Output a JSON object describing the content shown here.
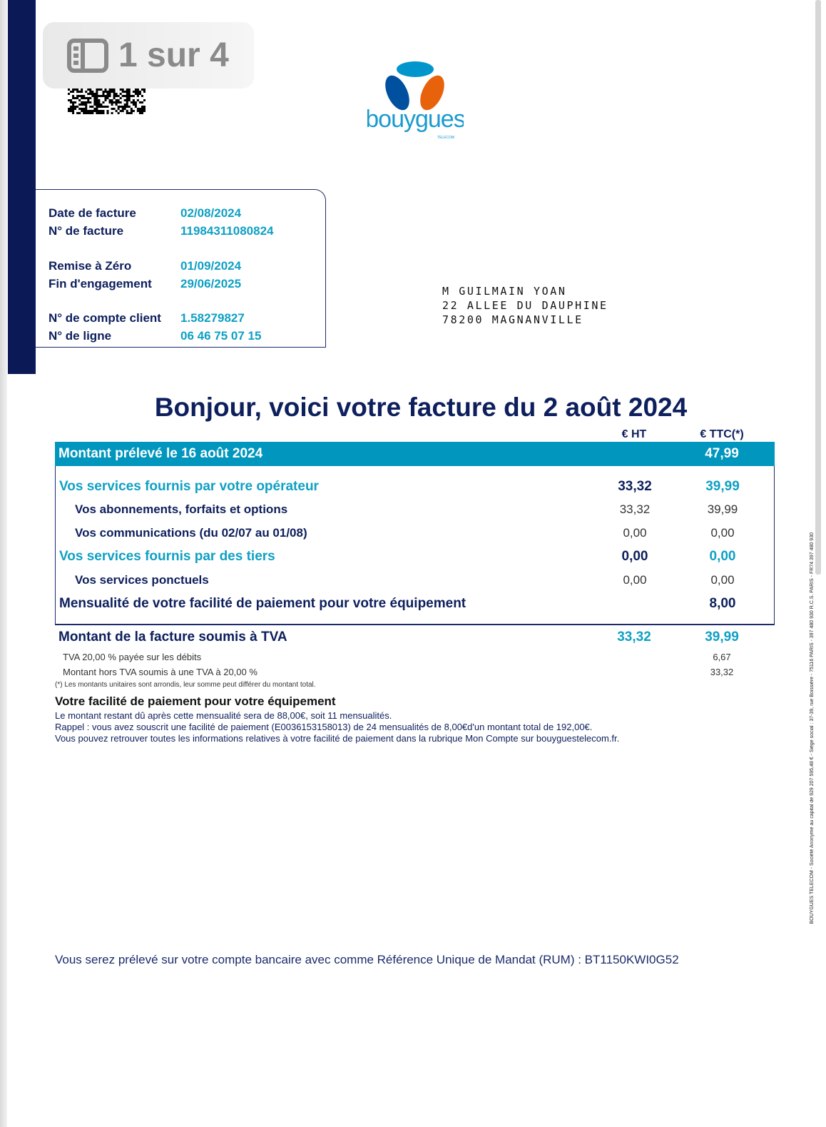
{
  "viewer": {
    "page_indicator": "1 sur 4",
    "icon": "sidebar-icon"
  },
  "brand": {
    "name": "bouygues",
    "sub": "TELECOM",
    "colors": {
      "navy": "#0b1a56",
      "cyan": "#0096bd",
      "blue": "#0050a0",
      "orange": "#e8620c"
    }
  },
  "info": [
    {
      "label": "Date de facture",
      "value": "02/08/2024"
    },
    {
      "label": "N° de facture",
      "value": "11984311080824"
    },
    {
      "label": "Remise à Zéro",
      "value": "01/09/2024"
    },
    {
      "label": "Fin d'engagement",
      "value": "29/06/2025"
    },
    {
      "label": "N° de compte client",
      "value": "1.58279827"
    },
    {
      "label": "N° de ligne",
      "value": "06 46 75 07 15"
    }
  ],
  "address": [
    "M GUILMAIN YOAN",
    "22 ALLEE DU DAUPHINE",
    "78200 MAGNANVILLE"
  ],
  "title": "Bonjour, voici votre facture du 2 août 2024",
  "columns": {
    "ht": "€ HT",
    "ttc": "€ TTC(*)"
  },
  "band": {
    "label": "Montant prélevé le 16 août 2024",
    "ttc": "47,99"
  },
  "rows": [
    {
      "label": "Vos services fournis par votre opérateur",
      "ht": "33,32",
      "ttc": "39,99"
    },
    {
      "label": "Vos abonnements, forfaits et options",
      "ht": "33,32",
      "ttc": "39,99"
    },
    {
      "label": "Vos communications  (du 02/07 au 01/08)",
      "ht": "0,00",
      "ttc": "0,00"
    },
    {
      "label": "Vos services fournis par des tiers",
      "ht": "0,00",
      "ttc": "0,00"
    },
    {
      "label": "Vos services ponctuels",
      "ht": "0,00",
      "ttc": "0,00"
    },
    {
      "label": "Mensualité de votre facilité de paiement pour votre équipement",
      "ttc": "8,00"
    }
  ],
  "tva": {
    "label": "Montant de la facture soumis à TVA",
    "ht": "33,32",
    "ttc": "39,99",
    "lines": [
      {
        "label": "TVA 20,00 % payée sur les débits",
        "ttc": "6,67"
      },
      {
        "label": "Montant hors TVA soumis à une TVA à 20,00 %",
        "ttc": "33,32"
      }
    ],
    "note": "(*) Les montants unitaires sont arrondis, leur somme peut différer du montant total."
  },
  "facilite": {
    "title": "Votre facilité de paiement pour votre équipement",
    "lines": [
      "Le montant restant dû après cette mensualité sera de 88,00€, soit 11  mensualités.",
      "Rappel : vous avez souscrit une facilité de paiement  (E0036153158013) de 24 mensualités de 8,00€d'un montant total de 192,00€.",
      "Vous pouvez retrouver toutes les informations relatives à votre facilité de paiement dans la rubrique Mon Compte sur bouyguestelecom.fr."
    ]
  },
  "mandat": "Vous serez prélevé sur votre compte bancaire   avec comme Référence Unique de Mandat (RUM) : BT1150KWI0G52",
  "legal": "BOUYGUES TELECOM - Société Anonyme au capital de 929 207 595,48 € - Siège social : 37-39, rue Boissière - 75116 PARIS - 397 480 930 R.C.S. PARIS - FR74 397 480 930"
}
